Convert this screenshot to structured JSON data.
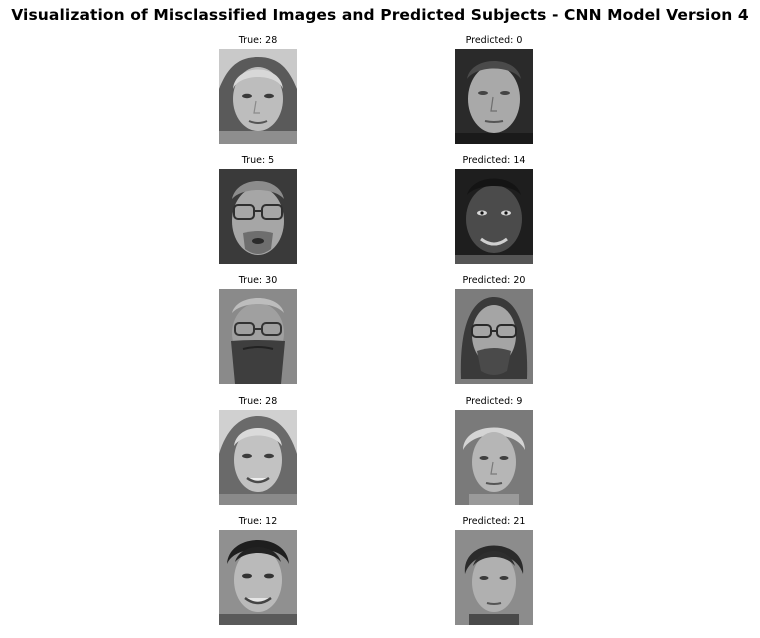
{
  "title": "Visualization of Misclassified Images and Predicted Subjects - CNN Model Version 4",
  "rows": [
    {
      "true_label": "True: 28",
      "pred_label": "Predicted: 0"
    },
    {
      "true_label": "True: 5",
      "pred_label": "Predicted: 14"
    },
    {
      "true_label": "True: 30",
      "pred_label": "Predicted: 20"
    },
    {
      "true_label": "True: 28",
      "pred_label": "Predicted: 9"
    },
    {
      "true_label": "True: 12",
      "pred_label": "Predicted: 21"
    }
  ]
}
